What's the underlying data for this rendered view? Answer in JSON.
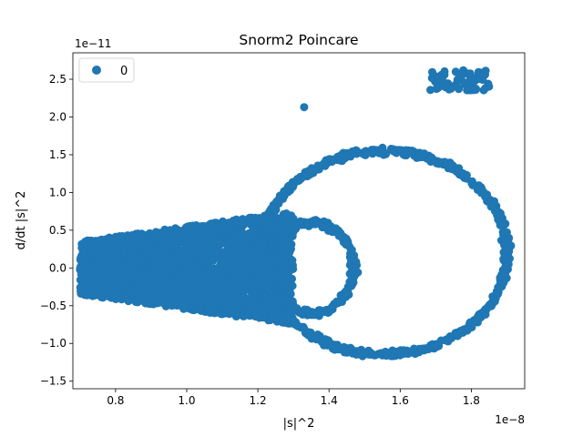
{
  "chart_data": {
    "type": "scatter",
    "title": "Snorm2 Poincare",
    "xlabel": "|s|^2",
    "ylabel": "d/dt |s|^2",
    "x_offset_label": "1e−8",
    "y_offset_label": "1e−11",
    "xlim": [
      0.68,
      1.95
    ],
    "ylim": [
      -1.6,
      2.85
    ],
    "x_ticks": [
      0.8,
      1.0,
      1.2,
      1.4,
      1.6,
      1.8
    ],
    "x_tick_labels": [
      "0.8",
      "1.0",
      "1.2",
      "1.4",
      "1.6",
      "1.8"
    ],
    "y_ticks": [
      -1.5,
      -1.0,
      -0.5,
      0.0,
      0.5,
      1.0,
      1.5,
      2.0,
      2.5
    ],
    "y_tick_labels": [
      "−1.5",
      "−1.0",
      "−0.5",
      "0.0",
      "0.5",
      "1.0",
      "1.5",
      "2.0",
      "2.5"
    ],
    "grid": false,
    "legend": {
      "position": "upper-left",
      "entries": [
        "0"
      ]
    },
    "series": [
      {
        "name": "0",
        "color": "#1f77b4",
        "regions": [
          {
            "kind": "cone",
            "x_range": [
              0.7,
              1.3
            ],
            "y_at_start": 0.35,
            "y_at_end": 0.75,
            "description": "dense cone"
          },
          {
            "kind": "ring",
            "center": [
              1.35,
              0.0
            ],
            "rx": 0.12,
            "ry": 0.6
          },
          {
            "kind": "ring",
            "center": [
              1.555,
              0.2
            ],
            "rx": 0.345,
            "ry": 1.35
          },
          {
            "kind": "cluster",
            "x_range": [
              1.68,
              1.85
            ],
            "y_range": [
              2.35,
              2.62
            ]
          },
          {
            "kind": "point",
            "x": 1.33,
            "y": 2.13
          }
        ]
      }
    ]
  }
}
